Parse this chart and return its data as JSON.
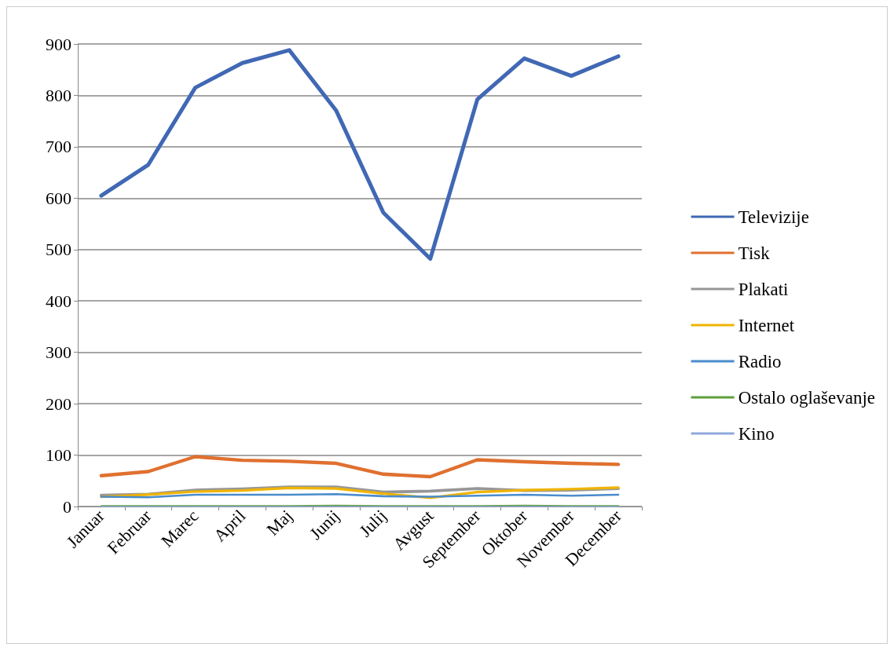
{
  "chart_data": {
    "type": "line",
    "categories": [
      "Januar",
      "Februar",
      "Marec",
      "April",
      "Maj",
      "Junij",
      "Julij",
      "Avgust",
      "September",
      "Oktober",
      "November",
      "December"
    ],
    "series": [
      {
        "name": "Televizije",
        "color": "#4068b4",
        "values": [
          605,
          665,
          815,
          863,
          888,
          770,
          572,
          482,
          792,
          872,
          838,
          876
        ]
      },
      {
        "name": "Tisk",
        "color": "#e07030",
        "values": [
          60,
          68,
          97,
          90,
          88,
          84,
          63,
          58,
          91,
          87,
          84,
          82
        ]
      },
      {
        "name": "Plakati",
        "color": "#979797",
        "values": [
          22,
          24,
          32,
          34,
          38,
          38,
          28,
          30,
          35,
          31,
          32,
          35
        ]
      },
      {
        "name": "Internet",
        "color": "#f0b400",
        "values": [
          19,
          23,
          29,
          31,
          36,
          35,
          25,
          17,
          28,
          32,
          34,
          37
        ]
      },
      {
        "name": "Radio",
        "color": "#4a8ccc",
        "values": [
          19,
          18,
          23,
          23,
          23,
          24,
          20,
          19,
          21,
          23,
          21,
          23
        ]
      },
      {
        "name": "Ostalo oglaševanje",
        "color": "#5ea03c",
        "values": [
          1,
          1,
          1,
          1,
          1,
          2,
          1,
          1,
          1,
          2,
          1,
          1
        ]
      },
      {
        "name": "Kino",
        "color": "#90a8dc",
        "values": [
          0,
          0,
          0,
          0,
          0,
          0,
          0,
          0,
          0,
          0,
          0,
          0
        ]
      }
    ],
    "ylim": [
      0,
      900
    ],
    "yticks": [
      0,
      100,
      200,
      300,
      400,
      500,
      600,
      700,
      800,
      900
    ],
    "grid": "y",
    "legend": "right",
    "marker": "none",
    "line_style": "solid"
  }
}
